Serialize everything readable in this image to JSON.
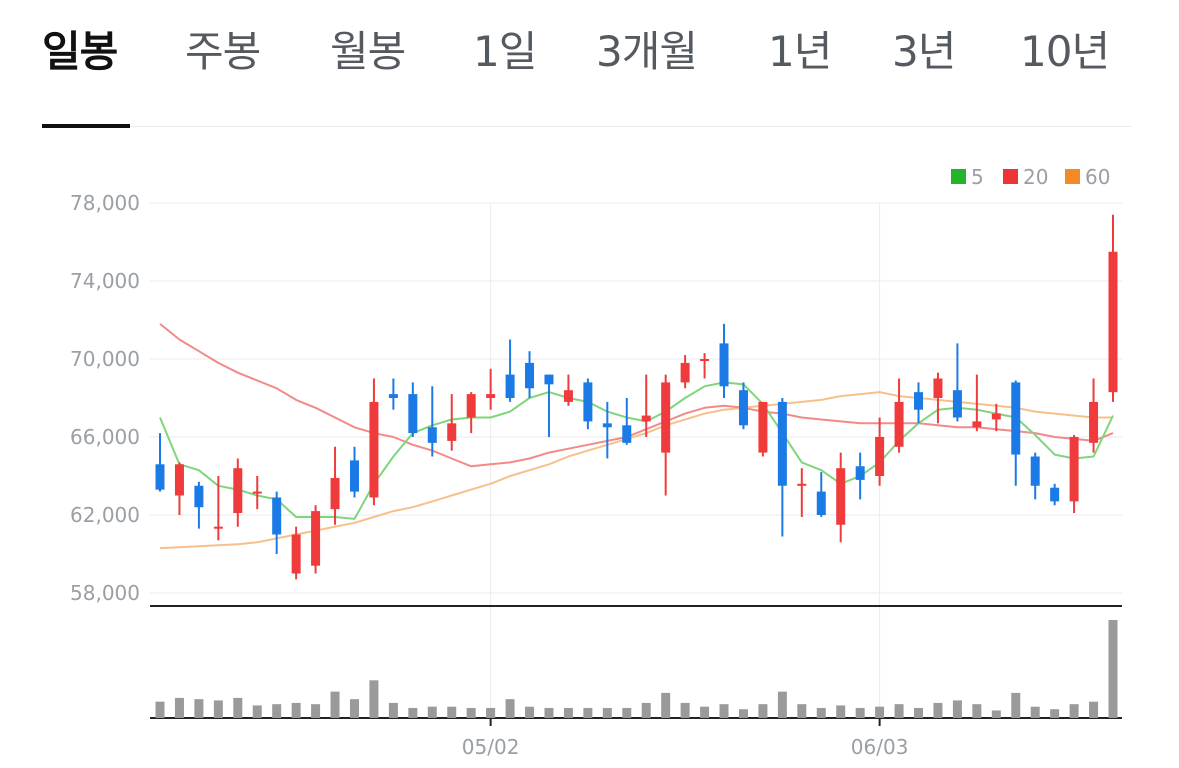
{
  "tabs": [
    {
      "label": "일봉",
      "active": true
    },
    {
      "label": "주봉",
      "active": false
    },
    {
      "label": "월봉",
      "active": false
    },
    {
      "label": "1일",
      "active": false
    },
    {
      "label": "3개월",
      "active": false
    },
    {
      "label": "1년",
      "active": false
    },
    {
      "label": "3년",
      "active": false
    },
    {
      "label": "10년",
      "active": false
    }
  ],
  "colors": {
    "up": "#ef3b3b",
    "down": "#1b7ae6",
    "ma5": "#7fd67a",
    "ma20": "#f28a8a",
    "ma60": "#f7c08a",
    "volume": "#9a9a9a",
    "legend5": "#22b42a",
    "legend20": "#ee3535",
    "legend60": "#f48a24"
  },
  "chart_data": {
    "type": "candlestick",
    "price_ticks": [
      "78,000",
      "74,000",
      "70,000",
      "66,000",
      "62,000",
      "58,000"
    ],
    "price_tick_values": [
      78000,
      74000,
      70000,
      66000,
      62000,
      58000
    ],
    "ylim": [
      58000,
      78000
    ],
    "x_tick_labels": [
      {
        "index": 17,
        "label": "05/02"
      },
      {
        "index": 37,
        "label": "06/03"
      }
    ],
    "legend": [
      "5",
      "20",
      "60"
    ],
    "candles": [
      [
        64600,
        63300,
        66200,
        63200
      ],
      [
        63000,
        64600,
        64700,
        62000
      ],
      [
        63500,
        62400,
        63700,
        61300
      ],
      [
        61400,
        61400,
        64000,
        60700
      ],
      [
        62100,
        64400,
        64900,
        61400
      ],
      [
        63200,
        63200,
        64000,
        62300
      ],
      [
        62900,
        61000,
        63200,
        60000
      ],
      [
        59000,
        61000,
        61400,
        58700
      ],
      [
        59400,
        62200,
        62500,
        59000
      ],
      [
        62300,
        63900,
        65500,
        61500
      ],
      [
        64800,
        63200,
        65500,
        62900
      ],
      [
        62900,
        67800,
        69000,
        62500
      ],
      [
        68200,
        68000,
        69000,
        67400
      ],
      [
        68200,
        66200,
        68800,
        66000
      ],
      [
        66500,
        65700,
        68600,
        65000
      ],
      [
        65800,
        66700,
        68200,
        65300
      ],
      [
        67000,
        68200,
        68300,
        66200
      ],
      [
        68000,
        68200,
        69500,
        67400
      ],
      [
        69200,
        68000,
        71000,
        67800
      ],
      [
        69800,
        68500,
        70400,
        68000
      ],
      [
        69200,
        68700,
        69200,
        66000
      ],
      [
        67800,
        68400,
        69200,
        67600
      ],
      [
        68800,
        66800,
        69000,
        66400
      ],
      [
        66700,
        66500,
        67800,
        64900
      ],
      [
        66600,
        65700,
        68000,
        65600
      ],
      [
        66800,
        67100,
        69200,
        66000
      ],
      [
        65200,
        68800,
        69200,
        63000
      ],
      [
        68800,
        69800,
        70200,
        68500
      ],
      [
        70000,
        70000,
        70300,
        69000
      ],
      [
        70800,
        68600,
        71800,
        68000
      ],
      [
        68400,
        66600,
        68800,
        66400
      ],
      [
        65200,
        67800,
        67800,
        65000
      ],
      [
        67800,
        63500,
        68000,
        60900
      ],
      [
        63600,
        63600,
        64400,
        61900
      ],
      [
        63200,
        62000,
        64200,
        61900
      ],
      [
        61500,
        64400,
        65200,
        60600
      ],
      [
        64500,
        63800,
        65200,
        62800
      ],
      [
        64000,
        66000,
        67000,
        63500
      ],
      [
        65500,
        67800,
        69000,
        65200
      ],
      [
        68300,
        67400,
        68800,
        66700
      ],
      [
        68000,
        69000,
        69300,
        66700
      ],
      [
        68400,
        67000,
        70800,
        66800
      ],
      [
        66500,
        66800,
        69200,
        66300
      ],
      [
        66900,
        67200,
        67700,
        66300
      ],
      [
        68800,
        65100,
        68900,
        63500
      ],
      [
        65000,
        63500,
        65200,
        62800
      ],
      [
        63400,
        62700,
        63600,
        62500
      ],
      [
        62700,
        66000,
        66100,
        62100
      ],
      [
        65700,
        67800,
        69000,
        65200
      ],
      [
        68300,
        75500,
        77400,
        67800
      ]
    ],
    "ma5": [
      67000,
      64600,
      64300,
      63500,
      63300,
      63000,
      62800,
      61900,
      61900,
      61900,
      61800,
      63600,
      65000,
      66200,
      66600,
      66900,
      67000,
      67000,
      67300,
      68000,
      68300,
      68000,
      67800,
      67300,
      67000,
      66800,
      67300,
      68000,
      68600,
      68800,
      68700,
      67700,
      66200,
      64700,
      64300,
      63600,
      64000,
      64700,
      65800,
      66700,
      67400,
      67500,
      67400,
      67200,
      67000,
      66100,
      65100,
      64900,
      65000,
      67100
    ],
    "ma20": [
      71800,
      71000,
      70400,
      69800,
      69300,
      68900,
      68500,
      67900,
      67500,
      67000,
      66500,
      66200,
      66000,
      65600,
      65300,
      64900,
      64500,
      64600,
      64700,
      64900,
      65200,
      65400,
      65600,
      65800,
      66000,
      66400,
      66800,
      67200,
      67500,
      67600,
      67500,
      67300,
      67200,
      67000,
      66900,
      66800,
      66700,
      66700,
      66700,
      66700,
      66600,
      66500,
      66500,
      66400,
      66300,
      66200,
      66000,
      65900,
      65800,
      66200
    ],
    "ma60": [
      60300,
      60350,
      60400,
      60450,
      60500,
      60600,
      60800,
      61000,
      61200,
      61400,
      61600,
      61900,
      62200,
      62400,
      62700,
      63000,
      63300,
      63600,
      64000,
      64300,
      64600,
      65000,
      65300,
      65600,
      65900,
      66200,
      66600,
      66900,
      67200,
      67400,
      67500,
      67600,
      67700,
      67800,
      67900,
      68100,
      68200,
      68300,
      68100,
      68000,
      67900,
      67800,
      67700,
      67600,
      67500,
      67300,
      67200,
      67100,
      67000,
      67000
    ],
    "volume": [
      13,
      16,
      15,
      14,
      16,
      10,
      11,
      12,
      11,
      21,
      15,
      30,
      12,
      8,
      9,
      9,
      8,
      8,
      15,
      9,
      8,
      8,
      8,
      8,
      8,
      12,
      20,
      12,
      9,
      11,
      7,
      11,
      21,
      11,
      8,
      10,
      8,
      9,
      11,
      8,
      12,
      14,
      11,
      6,
      20,
      9,
      7,
      11,
      13,
      78
    ]
  }
}
